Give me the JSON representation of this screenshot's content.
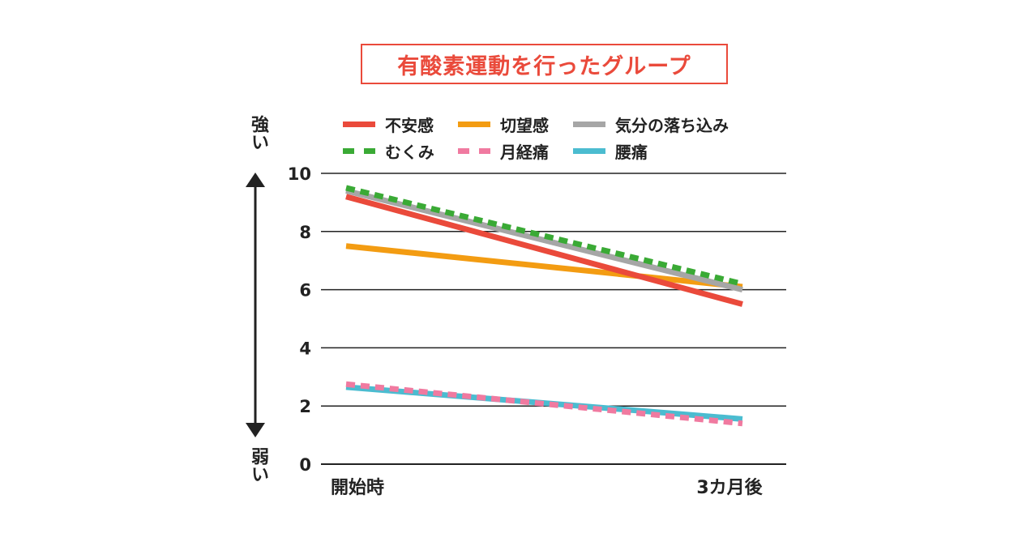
{
  "chart_data": {
    "type": "line",
    "title": "有酸素運動を行ったグループ",
    "x": [
      "開始時",
      "3カ月後"
    ],
    "ylim": [
      0,
      10
    ],
    "yticks": [
      0,
      2,
      4,
      6,
      8,
      10
    ],
    "grid": true,
    "y_axis_top_label": "強い",
    "y_axis_bottom_label": "弱い",
    "legend_position": "top",
    "series": [
      {
        "name": "不安感",
        "values": [
          9.2,
          5.5
        ],
        "color": "#ea4a3b",
        "dashed": false
      },
      {
        "name": "切望感",
        "values": [
          7.5,
          6.1
        ],
        "color": "#f39c12",
        "dashed": false
      },
      {
        "name": "気分の落ち込み",
        "values": [
          9.4,
          6.0
        ],
        "color": "#a6a6a6",
        "dashed": false
      },
      {
        "name": "むくみ",
        "values": [
          9.5,
          6.2
        ],
        "color": "#3aaa35",
        "dashed": true
      },
      {
        "name": "月経痛",
        "values": [
          2.75,
          1.4
        ],
        "color": "#f07aa0",
        "dashed": true
      },
      {
        "name": "腰痛",
        "values": [
          2.65,
          1.55
        ],
        "color": "#4bbcd0",
        "dashed": false
      }
    ]
  }
}
